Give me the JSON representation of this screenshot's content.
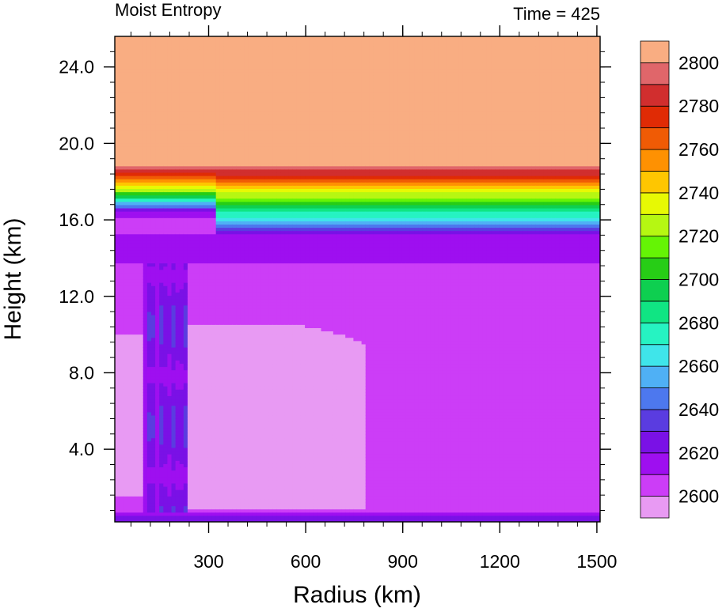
{
  "chart_data": {
    "type": "heatmap",
    "title_left": "Moist Entropy",
    "title_right": "Time = 425",
    "xlabel": "Radius (km)",
    "ylabel": "Height (km)",
    "xlim": [
      10,
      1510
    ],
    "ylim": [
      0.2,
      25.6
    ],
    "x_ticks": [
      300,
      600,
      900,
      1200,
      1500
    ],
    "x_tick_labels": [
      "300",
      "600",
      "900",
      "1200",
      "1500"
    ],
    "y_ticks": [
      4,
      8,
      12,
      16,
      20,
      24
    ],
    "y_tick_labels": [
      "4.0",
      "8.0",
      "12.0",
      "16.0",
      "20.0",
      "24.0"
    ],
    "colorbar": {
      "levels": [
        2600,
        2610,
        2620,
        2630,
        2640,
        2650,
        2660,
        2670,
        2680,
        2690,
        2700,
        2710,
        2720,
        2730,
        2740,
        2750,
        2760,
        2770,
        2780,
        2790,
        2800
      ],
      "labels": [
        "2600",
        "2620",
        "2640",
        "2660",
        "2680",
        "2700",
        "2720",
        "2740",
        "2760",
        "2780",
        "2800"
      ],
      "colors": [
        "#E89AF3",
        "#CC3DF7",
        "#9E0FF0",
        "#7A11E6",
        "#5A3CE0",
        "#4D78EE",
        "#4FB0F5",
        "#3FE5EA",
        "#26F3C2",
        "#10E583",
        "#0ECF50",
        "#27CD16",
        "#65F405",
        "#B6F712",
        "#E7F904",
        "#FEC601",
        "#FE9102",
        "#F05B05",
        "#E02B05",
        "#D12E2E",
        "#E0666A",
        "#F9AD82"
      ]
    }
  }
}
